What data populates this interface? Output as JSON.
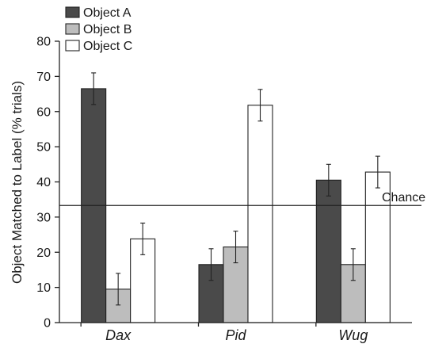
{
  "chart_data": {
    "type": "bar",
    "title": "",
    "xlabel": "",
    "ylabel": "Object Matched to Label (% trials)",
    "categories": [
      "Dax",
      "Pid",
      "Wug"
    ],
    "series": [
      {
        "name": "Object A",
        "color": "#4a4a4a",
        "values": [
          66.5,
          16.5,
          40.5
        ],
        "error": [
          4.5,
          4.5,
          4.5
        ]
      },
      {
        "name": "Object B",
        "color": "#bdbdbd",
        "values": [
          9.5,
          21.5,
          16.5
        ],
        "error": [
          4.5,
          4.5,
          4.5
        ]
      },
      {
        "name": "Object C",
        "color": "#ffffff",
        "values": [
          23.8,
          61.8,
          42.8
        ],
        "error": [
          4.5,
          4.5,
          4.5
        ]
      }
    ],
    "yticks": [
      0,
      10,
      20,
      30,
      40,
      50,
      60,
      70,
      80
    ],
    "ylim": [
      0,
      80
    ],
    "reference_line": {
      "value": 33.3,
      "label": "Chance"
    },
    "legend": "top-left",
    "grid": false
  }
}
